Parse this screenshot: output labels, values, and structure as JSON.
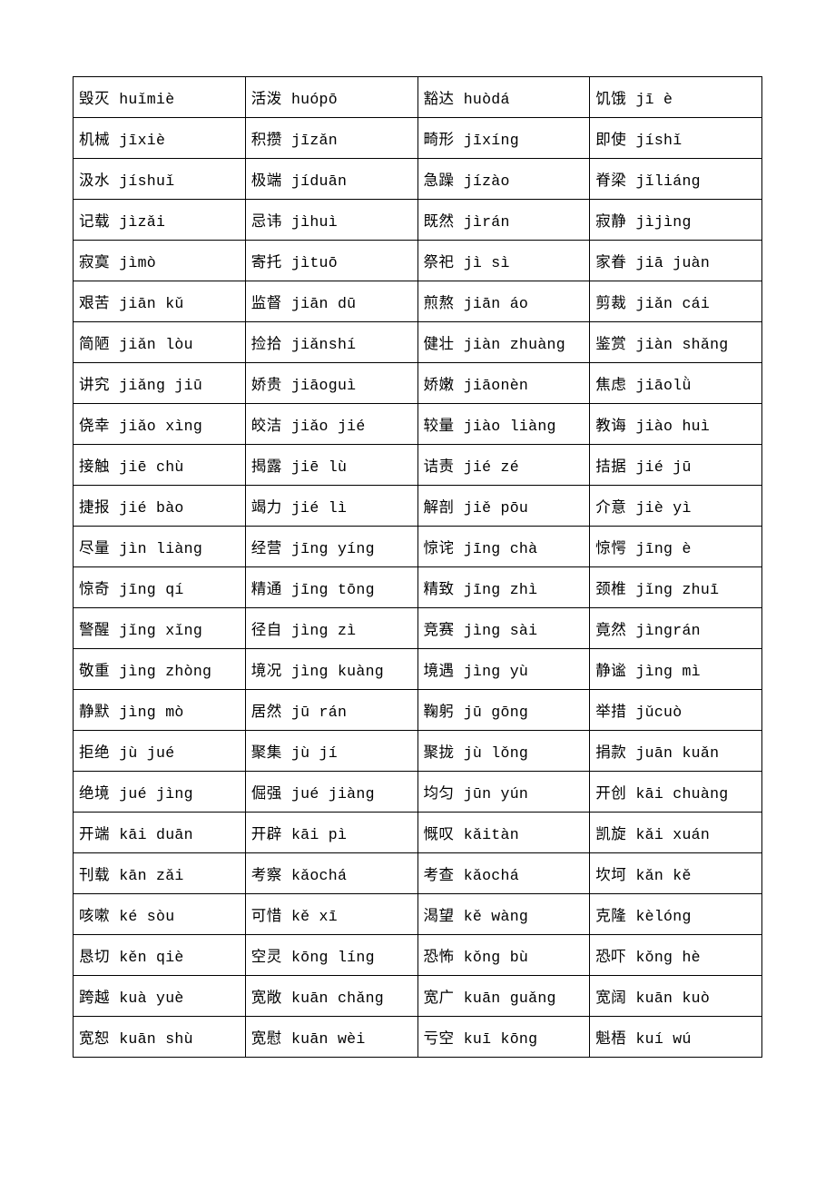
{
  "table": {
    "columns": 4,
    "rows": [
      [
        {
          "chinese": "毁灭",
          "pinyin": " huǐmiè"
        },
        {
          "chinese": "活泼",
          "pinyin": "huópō"
        },
        {
          "chinese": "豁达",
          "pinyin": "huòdá"
        },
        {
          "chinese": "饥饿",
          "pinyin": "jī è"
        }
      ],
      [
        {
          "chinese": "机械",
          "pinyin": "jīxiè"
        },
        {
          "chinese": "积攒",
          "pinyin": "jīzǎn"
        },
        {
          "chinese": "畸形",
          "pinyin": "jīxíng"
        },
        {
          "chinese": "即使",
          "pinyin": "jíshǐ"
        }
      ],
      [
        {
          "chinese": "汲水",
          "pinyin": "jíshuǐ"
        },
        {
          "chinese": "极端",
          "pinyin": "jíduān"
        },
        {
          "chinese": "急躁",
          "pinyin": "jízào"
        },
        {
          "chinese": "脊梁",
          "pinyin": "jǐliáng"
        }
      ],
      [
        {
          "chinese": "记载",
          "pinyin": "jìzǎi"
        },
        {
          "chinese": "忌讳",
          "pinyin": "jìhuì"
        },
        {
          "chinese": "既然",
          "pinyin": "jìrán"
        },
        {
          "chinese": "寂静",
          "pinyin": "jìjìng"
        }
      ],
      [
        {
          "chinese": "寂寞",
          "pinyin": "jìmò"
        },
        {
          "chinese": "寄托",
          "pinyin": "jìtuō"
        },
        {
          "chinese": "祭祀",
          "pinyin": "jì sì"
        },
        {
          "chinese": "家眷",
          "pinyin": "jiā juàn"
        }
      ],
      [
        {
          "chinese": "艰苦",
          "pinyin": "jiān kǔ"
        },
        {
          "chinese": "监督",
          "pinyin": "jiān dū"
        },
        {
          "chinese": "煎熬",
          "pinyin": "jiān áo"
        },
        {
          "chinese": "剪裁",
          "pinyin": "jiǎn cái"
        }
      ],
      [
        {
          "chinese": "简陋",
          "pinyin": "jiǎn lòu"
        },
        {
          "chinese": "捡拾",
          "pinyin": "jiǎnshí"
        },
        {
          "chinese": "健壮",
          "pinyin": "jiàn zhuàng"
        },
        {
          "chinese": "鉴赏",
          "pinyin": "jiàn shǎng"
        }
      ],
      [
        {
          "chinese": "讲究",
          "pinyin": "jiǎng jiū"
        },
        {
          "chinese": "娇贵",
          "pinyin": "jiāoguì"
        },
        {
          "chinese": "娇嫩",
          "pinyin": "jiāonèn"
        },
        {
          "chinese": "焦虑",
          "pinyin": "jiāolǜ"
        }
      ],
      [
        {
          "chinese": "侥幸",
          "pinyin": "jiǎo xìng"
        },
        {
          "chinese": "皎洁",
          "pinyin": "jiǎo jié"
        },
        {
          "chinese": "较量",
          "pinyin": "jiào liàng"
        },
        {
          "chinese": "教诲",
          "pinyin": "jiào huì"
        }
      ],
      [
        {
          "chinese": "接触",
          "pinyin": "jiē chù"
        },
        {
          "chinese": "揭露",
          "pinyin": "jiē lù"
        },
        {
          "chinese": "诘责",
          "pinyin": "jié zé"
        },
        {
          "chinese": "拮据",
          "pinyin": "jié jū"
        }
      ],
      [
        {
          "chinese": "捷报",
          "pinyin": "jié bào"
        },
        {
          "chinese": "竭力",
          "pinyin": "jié lì"
        },
        {
          "chinese": "解剖",
          "pinyin": "jiě pōu"
        },
        {
          "chinese": "介意",
          "pinyin": "jiè yì"
        }
      ],
      [
        {
          "chinese": "尽量",
          "pinyin": "jìn liàng"
        },
        {
          "chinese": "经营",
          "pinyin": "jīng yíng"
        },
        {
          "chinese": "惊诧",
          "pinyin": "jīng chà"
        },
        {
          "chinese": "惊愕",
          "pinyin": "jīng è"
        }
      ],
      [
        {
          "chinese": "惊奇",
          "pinyin": "jīng qí"
        },
        {
          "chinese": "精通",
          "pinyin": "jīng tōng"
        },
        {
          "chinese": "精致",
          "pinyin": "jīng zhì"
        },
        {
          "chinese": "颈椎",
          "pinyin": "jǐng zhuī"
        }
      ],
      [
        {
          "chinese": "警醒",
          "pinyin": "jǐng xǐng"
        },
        {
          "chinese": "径自",
          "pinyin": "jìng zì"
        },
        {
          "chinese": "竞赛",
          "pinyin": "jìng sài"
        },
        {
          "chinese": "竟然",
          "pinyin": "jìngrán"
        }
      ],
      [
        {
          "chinese": "敬重",
          "pinyin": "jìng zhòng"
        },
        {
          "chinese": "境况",
          "pinyin": "jìng kuàng"
        },
        {
          "chinese": "境遇",
          "pinyin": "jìng yù"
        },
        {
          "chinese": "静谧",
          "pinyin": "jìng mì"
        }
      ],
      [
        {
          "chinese": "静默",
          "pinyin": "jìng mò"
        },
        {
          "chinese": "居然",
          "pinyin": "jū rán"
        },
        {
          "chinese": "鞠躬",
          "pinyin": "jū gōng"
        },
        {
          "chinese": "举措",
          "pinyin": "jǔcuò"
        }
      ],
      [
        {
          "chinese": "拒绝",
          "pinyin": "jù jué"
        },
        {
          "chinese": "聚集",
          "pinyin": "jù jí"
        },
        {
          "chinese": "聚拢",
          "pinyin": "jù lǒng"
        },
        {
          "chinese": "捐款",
          "pinyin": "juān kuǎn"
        }
      ],
      [
        {
          "chinese": "绝境",
          "pinyin": "jué jìng"
        },
        {
          "chinese": "倔强",
          "pinyin": "jué jiàng"
        },
        {
          "chinese": "均匀",
          "pinyin": "jūn yún"
        },
        {
          "chinese": "开创",
          "pinyin": "kāi chuàng"
        }
      ],
      [
        {
          "chinese": "开端",
          "pinyin": "kāi duān"
        },
        {
          "chinese": "开辟",
          "pinyin": "kāi pì"
        },
        {
          "chinese": "慨叹",
          "pinyin": "kǎitàn"
        },
        {
          "chinese": "凯旋",
          "pinyin": "kǎi xuán"
        }
      ],
      [
        {
          "chinese": "刊载",
          "pinyin": "kān zǎi"
        },
        {
          "chinese": "考察",
          "pinyin": "kǎochá"
        },
        {
          "chinese": "考查",
          "pinyin": "kǎochá"
        },
        {
          "chinese": "坎坷",
          "pinyin": "kǎn kě"
        }
      ],
      [
        {
          "chinese": "咳嗽",
          "pinyin": "ké sòu"
        },
        {
          "chinese": "可惜",
          "pinyin": "kě xī"
        },
        {
          "chinese": "渴望",
          "pinyin": "kě wàng"
        },
        {
          "chinese": "克隆",
          "pinyin": "kèlóng"
        }
      ],
      [
        {
          "chinese": "恳切",
          "pinyin": "kěn qiè"
        },
        {
          "chinese": "空灵",
          "pinyin": "kōng líng"
        },
        {
          "chinese": "恐怖",
          "pinyin": "kǒng bù"
        },
        {
          "chinese": "恐吓",
          "pinyin": "kǒng hè"
        }
      ],
      [
        {
          "chinese": "跨越",
          "pinyin": "kuà yuè"
        },
        {
          "chinese": "宽敞",
          "pinyin": "kuān chǎng"
        },
        {
          "chinese": "宽广",
          "pinyin": "kuān guǎng"
        },
        {
          "chinese": "宽阔",
          "pinyin": "kuān kuò"
        }
      ],
      [
        {
          "chinese": "宽恕",
          "pinyin": "kuān shù"
        },
        {
          "chinese": "宽慰",
          "pinyin": "kuān wèi"
        },
        {
          "chinese": "亏空",
          "pinyin": "kuī kōng"
        },
        {
          "chinese": "魁梧",
          "pinyin": "kuí wú"
        }
      ]
    ],
    "border_color": "#000000",
    "background_color": "#ffffff",
    "cell_font_size": 16.5,
    "text_color": "#000000"
  }
}
